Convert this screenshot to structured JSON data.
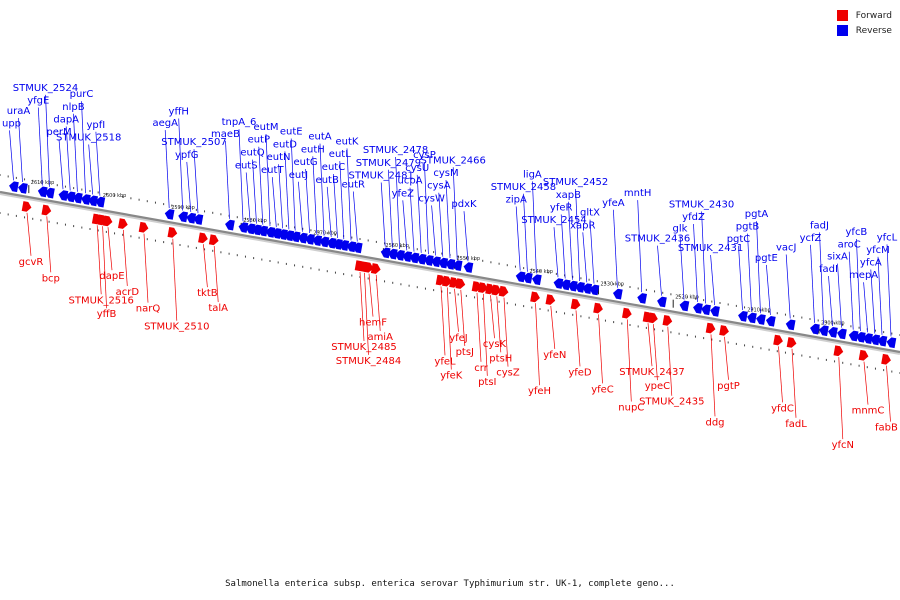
{
  "legend": [
    {
      "label": "Forward",
      "color": "#ee0000"
    },
    {
      "label": "Reverse",
      "color": "#0000ee"
    }
  ],
  "caption": "Salmonella enterica subsp. enterica serovar Typhimurium str. UK-1, complete geno...",
  "colors": {
    "forward": "#ee0000",
    "reverse": "#0000ee",
    "axis": "#888888"
  },
  "ticks": [
    {
      "label": "2610 kbp",
      "pos": 0.032
    },
    {
      "label": "2600 kbp",
      "pos": 0.112
    },
    {
      "label": "2590 kbp",
      "pos": 0.188
    },
    {
      "label": "2580 kbp",
      "pos": 0.268
    },
    {
      "label": "2570 kbp",
      "pos": 0.346
    },
    {
      "label": "2560 kbp",
      "pos": 0.426
    },
    {
      "label": "2550 kbp",
      "pos": 0.505
    },
    {
      "label": "2540 kbp",
      "pos": 0.586
    },
    {
      "label": "2530 kbp",
      "pos": 0.665
    },
    {
      "label": "2520 kbp",
      "pos": 0.748
    },
    {
      "label": "2510 kbp",
      "pos": 0.828
    },
    {
      "label": "2500 kbp",
      "pos": 0.91
    }
  ],
  "reverse_genes": [
    {
      "name": "upp",
      "pos": 0.015
    },
    {
      "name": "uraA",
      "pos": 0.025
    },
    {
      "name": "yfgE",
      "pos": 0.047
    },
    {
      "name": "STMUK_2524",
      "pos": 0.055
    },
    {
      "name": "perM",
      "pos": 0.07
    },
    {
      "name": "dapA",
      "pos": 0.078
    },
    {
      "name": "nlpB",
      "pos": 0.086
    },
    {
      "name": "purC",
      "pos": 0.095
    },
    {
      "name": "STMUK_2518",
      "pos": 0.103
    },
    {
      "name": "ypfI",
      "pos": 0.111
    },
    {
      "name": "aegA",
      "pos": 0.188
    },
    {
      "name": "yffH",
      "pos": 0.203
    },
    {
      "name": "ypfG",
      "pos": 0.212
    },
    {
      "name": "STMUK_2507",
      "pos": 0.22
    },
    {
      "name": "maeB",
      "pos": 0.255
    },
    {
      "name": "tnpA_6",
      "pos": 0.27
    },
    {
      "name": "eutS",
      "pos": 0.278
    },
    {
      "name": "eutQ",
      "pos": 0.285
    },
    {
      "name": "eutP",
      "pos": 0.292
    },
    {
      "name": "eutM",
      "pos": 0.3
    },
    {
      "name": "eutT",
      "pos": 0.307
    },
    {
      "name": "eutN",
      "pos": 0.314
    },
    {
      "name": "eutD",
      "pos": 0.321
    },
    {
      "name": "eutE",
      "pos": 0.328
    },
    {
      "name": "eutJ",
      "pos": 0.336
    },
    {
      "name": "eutG",
      "pos": 0.344
    },
    {
      "name": "eutH",
      "pos": 0.352
    },
    {
      "name": "eutA",
      "pos": 0.36
    },
    {
      "name": "eutB",
      "pos": 0.368
    },
    {
      "name": "eutC",
      "pos": 0.375
    },
    {
      "name": "eutL",
      "pos": 0.382
    },
    {
      "name": "eutK",
      "pos": 0.39
    },
    {
      "name": "eutR",
      "pos": 0.397
    },
    {
      "name": "STMUK_2481",
      "pos": 0.428
    },
    {
      "name": "STMUK_2479",
      "pos": 0.436
    },
    {
      "name": "STMUK_2478",
      "pos": 0.444
    },
    {
      "name": "yfeZ",
      "pos": 0.452
    },
    {
      "name": "ucpA",
      "pos": 0.46
    },
    {
      "name": "cysU",
      "pos": 0.468
    },
    {
      "name": "cysP",
      "pos": 0.476
    },
    {
      "name": "cysW",
      "pos": 0.484
    },
    {
      "name": "cysA",
      "pos": 0.492
    },
    {
      "name": "cysM",
      "pos": 0.5
    },
    {
      "name": "STMUK_2466",
      "pos": 0.508
    },
    {
      "name": "pdxK",
      "pos": 0.52
    },
    {
      "name": "zipA",
      "pos": 0.578
    },
    {
      "name": "STMUK_2458",
      "pos": 0.586
    },
    {
      "name": "ligA",
      "pos": 0.596
    },
    {
      "name": "STMUK_2454",
      "pos": 0.62
    },
    {
      "name": "yfeR",
      "pos": 0.628
    },
    {
      "name": "xapB",
      "pos": 0.636
    },
    {
      "name": "STMUK_2452",
      "pos": 0.644
    },
    {
      "name": "xapR",
      "pos": 0.652
    },
    {
      "name": "gltX",
      "pos": 0.66
    },
    {
      "name": "yfeA",
      "pos": 0.686
    },
    {
      "name": "mntH",
      "pos": 0.713
    },
    {
      "name": "STMUK_2436",
      "pos": 0.735
    },
    {
      "name": "glk",
      "pos": 0.76
    },
    {
      "name": "yfdZ",
      "pos": 0.775
    },
    {
      "name": "STMUK_2430",
      "pos": 0.784
    },
    {
      "name": "STMUK_2431",
      "pos": 0.794
    },
    {
      "name": "pgtC",
      "pos": 0.825
    },
    {
      "name": "pgtB",
      "pos": 0.835
    },
    {
      "name": "pgtA",
      "pos": 0.845
    },
    {
      "name": "pgtE",
      "pos": 0.856
    },
    {
      "name": "vacJ",
      "pos": 0.878
    },
    {
      "name": "ycfZ",
      "pos": 0.905
    },
    {
      "name": "fadJ",
      "pos": 0.915
    },
    {
      "name": "fadI",
      "pos": 0.925
    },
    {
      "name": "sixA",
      "pos": 0.935
    },
    {
      "name": "aroC",
      "pos": 0.948
    },
    {
      "name": "yfcB",
      "pos": 0.956
    },
    {
      "name": "mepA",
      "pos": 0.964
    },
    {
      "name": "yfcA",
      "pos": 0.972
    },
    {
      "name": "yfcM",
      "pos": 0.98
    },
    {
      "name": "yfcL",
      "pos": 0.99
    }
  ],
  "forward_genes": [
    {
      "name": "gcvR",
      "pos": 0.03
    },
    {
      "name": "bcp",
      "pos": 0.052
    },
    {
      "name": "STMUK_2516",
      "pos": 0.108
    },
    {
      "name": "yffB",
      "pos": 0.114
    },
    {
      "name": "dapE",
      "pos": 0.12
    },
    {
      "name": "acrD",
      "pos": 0.137
    },
    {
      "name": "narQ",
      "pos": 0.16
    },
    {
      "name": "STMUK_2510",
      "pos": 0.192
    },
    {
      "name": "tktB",
      "pos": 0.226
    },
    {
      "name": "talA",
      "pos": 0.238
    },
    {
      "name": "STMUK_2485",
      "pos": 0.4
    },
    {
      "name": "STMUK_2484",
      "pos": 0.405
    },
    {
      "name": "hemF",
      "pos": 0.41
    },
    {
      "name": "amiA",
      "pos": 0.418
    },
    {
      "name": "yfeL",
      "pos": 0.49
    },
    {
      "name": "yfeK",
      "pos": 0.497
    },
    {
      "name": "yfeJ",
      "pos": 0.505
    },
    {
      "name": "ptsJ",
      "pos": 0.512
    },
    {
      "name": "crr",
      "pos": 0.53
    },
    {
      "name": "ptsI",
      "pos": 0.537
    },
    {
      "name": "cysK",
      "pos": 0.545
    },
    {
      "name": "ptsH",
      "pos": 0.552
    },
    {
      "name": "cysZ",
      "pos": 0.56
    },
    {
      "name": "yfeH",
      "pos": 0.595
    },
    {
      "name": "yfeN",
      "pos": 0.612
    },
    {
      "name": "yfeD",
      "pos": 0.64
    },
    {
      "name": "yfeC",
      "pos": 0.665
    },
    {
      "name": "nupC",
      "pos": 0.697
    },
    {
      "name": "STMUK_2437",
      "pos": 0.72
    },
    {
      "name": "ypeC",
      "pos": 0.726
    },
    {
      "name": "STMUK_2435",
      "pos": 0.742
    },
    {
      "name": "ddg",
      "pos": 0.79
    },
    {
      "name": "pgtP",
      "pos": 0.805
    },
    {
      "name": "yfdC",
      "pos": 0.865
    },
    {
      "name": "fadL",
      "pos": 0.88
    },
    {
      "name": "yfcN",
      "pos": 0.932
    },
    {
      "name": "mnmC",
      "pos": 0.96
    },
    {
      "name": "fabB",
      "pos": 0.985
    }
  ]
}
